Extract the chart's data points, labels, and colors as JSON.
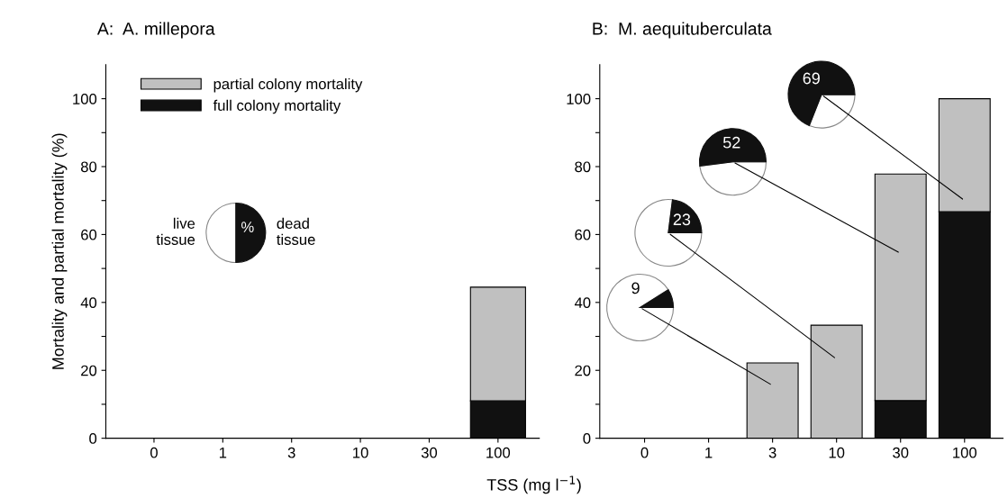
{
  "chart_data": [
    {
      "type": "bar",
      "title": "A:  A. millepora",
      "ylabel": "Mortality and partial mortality (%)",
      "categories": [
        "0",
        "1",
        "3",
        "10",
        "30",
        "100"
      ],
      "stacked": true,
      "legend": "top left",
      "series": [
        {
          "name": "full colony mortality",
          "color": "#111111",
          "values": [
            null,
            null,
            null,
            null,
            null,
            11
          ]
        },
        {
          "name": "partial colony mortality",
          "color": "#c0c0c0",
          "values": [
            null,
            null,
            null,
            null,
            null,
            33.5
          ]
        }
      ],
      "ylim": [
        0,
        110
      ],
      "yticks": [
        0,
        {
          "value": 10,
          "label": null
        },
        20,
        {
          "value": 30,
          "label": null
        },
        40,
        {
          "value": 50,
          "label": null
        },
        60,
        {
          "value": 70,
          "label": null
        },
        80,
        {
          "value": 90,
          "label": null
        },
        100
      ],
      "annotations": [
        "live\ntissue",
        "%",
        "dead\ntissue"
      ]
    },
    {
      "type": "bar",
      "title": "B:  M. aequituberculata",
      "xlabel": "TSS (mg l$^{−1}$)",
      "categories": [
        "0",
        "1",
        "3",
        "10",
        "30",
        "100"
      ],
      "stacked": true,
      "series": [
        {
          "color": "#111111",
          "values": [
            null,
            null,
            null,
            null,
            11.1,
            66.7
          ]
        },
        {
          "color": "#c0c0c0",
          "values": [
            null,
            null,
            22.2,
            33.3,
            66.7,
            33.3
          ]
        }
      ],
      "ylim": [
        0,
        110
      ],
      "yticks": [
        0,
        {
          "value": 10,
          "label": null
        },
        20,
        {
          "value": 30,
          "label": null
        },
        40,
        {
          "value": 50,
          "label": null
        },
        60,
        {
          "value": 70,
          "label": null
        },
        80,
        {
          "value": 90,
          "label": null
        },
        100
      ],
      "annotations": [
        "9",
        "23",
        "52",
        "69"
      ]
    }
  ]
}
